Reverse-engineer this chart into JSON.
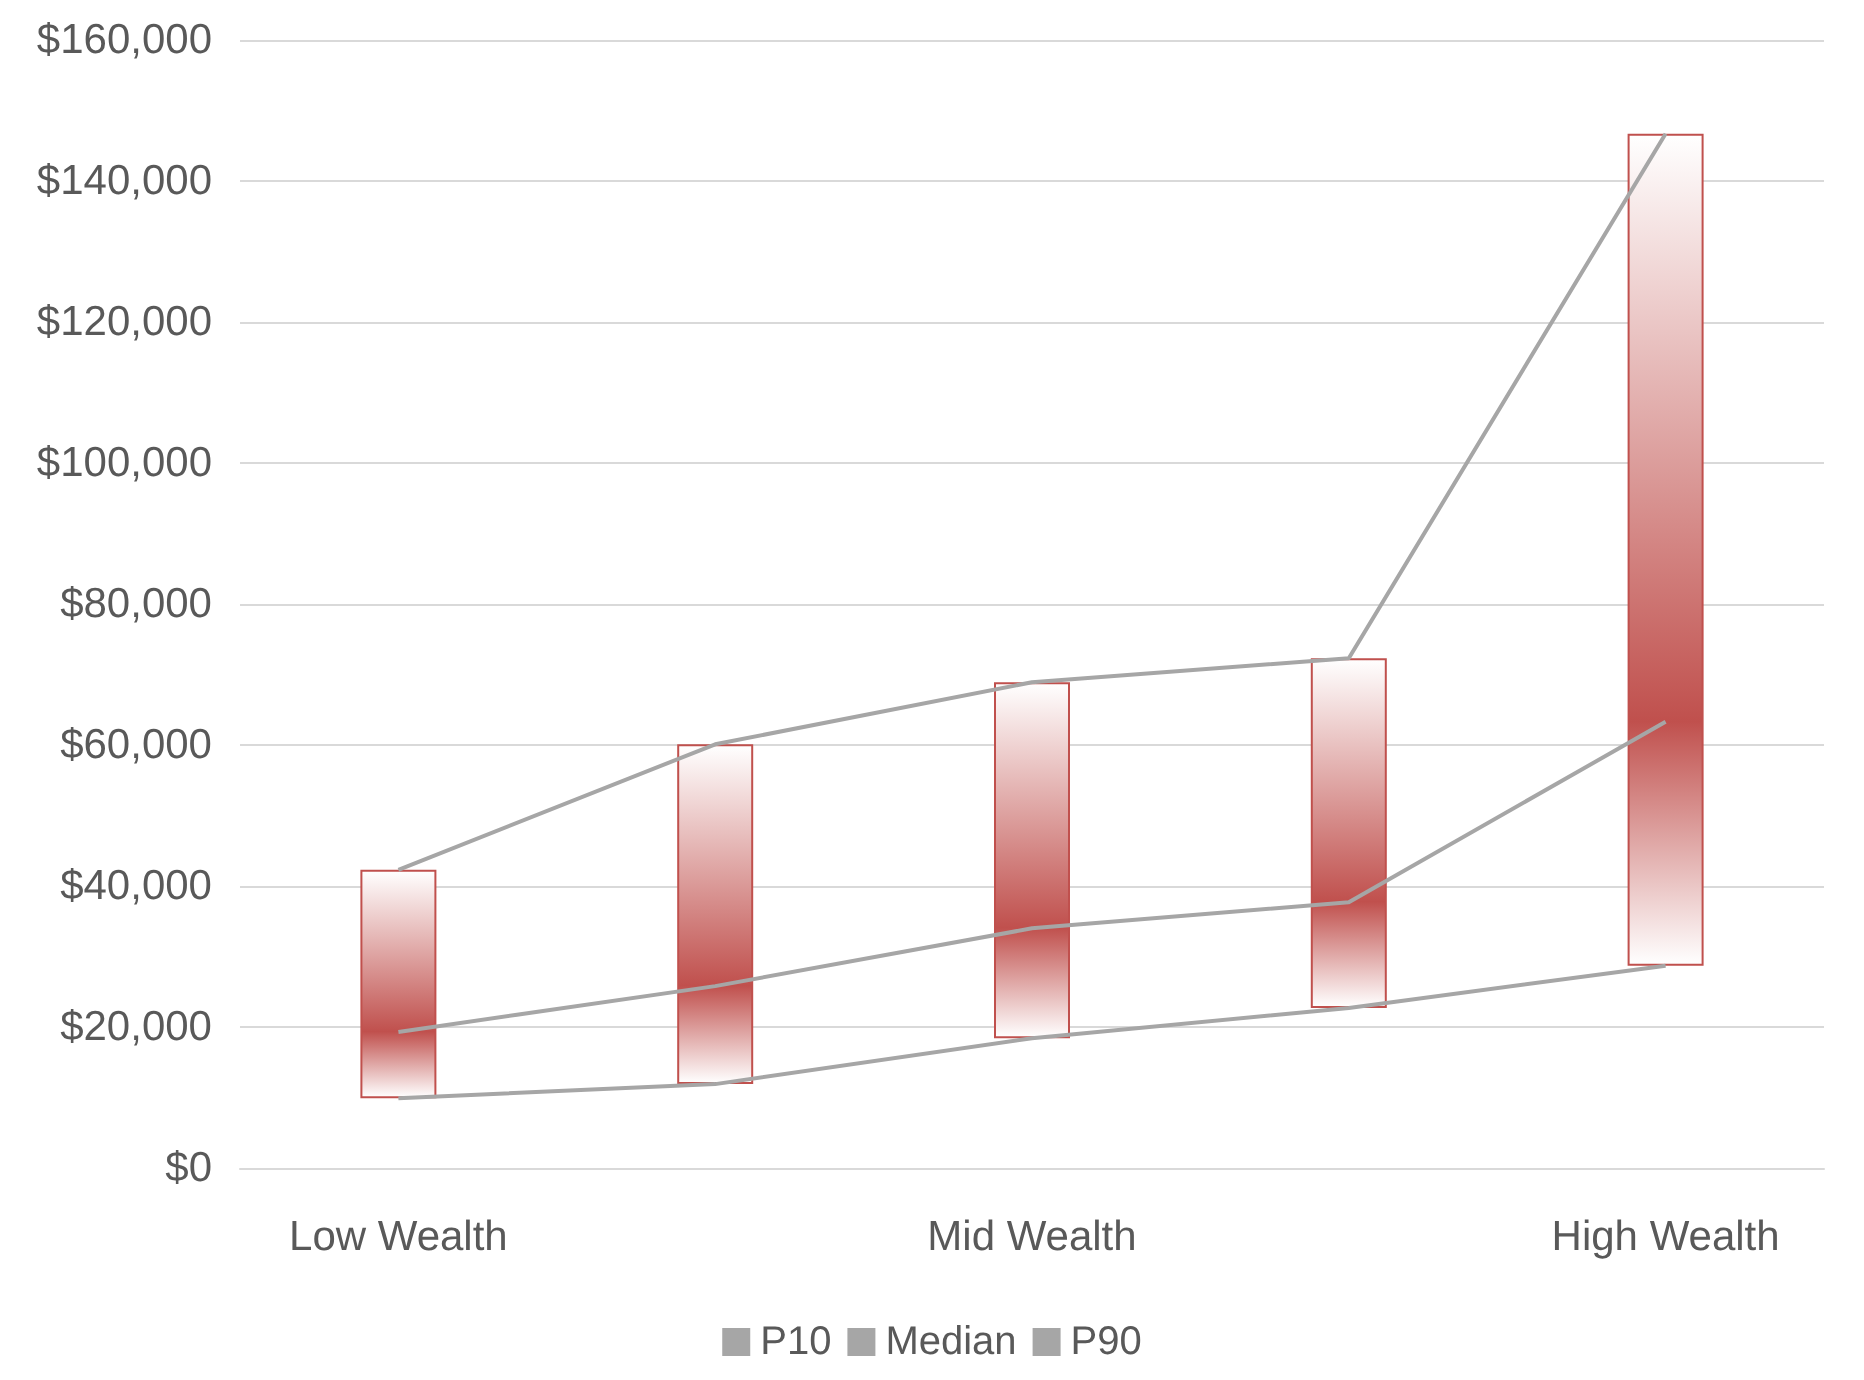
{
  "chart_data": {
    "type": "line",
    "categories": [
      "Low Wealth",
      null,
      "Mid Wealth",
      null,
      "High Wealth"
    ],
    "series": [
      {
        "type": "bar",
        "color": "#c0504d",
        "base": [
          9900,
          11900,
          18400,
          22700,
          28700
        ],
        "values": [
          32400,
          48200,
          50500,
          49600,
          118000
        ]
      },
      {
        "name": "P10",
        "color": "#a6a6a6",
        "values": [
          9900,
          11900,
          18400,
          22700,
          28700
        ]
      },
      {
        "name": "Median",
        "color": "#a6a6a6",
        "values": [
          19300,
          25800,
          34000,
          37700,
          63300
        ]
      },
      {
        "name": "P90",
        "color": "#a6a6a6",
        "values": [
          42300,
          60100,
          68900,
          72300,
          146700
        ]
      }
    ],
    "ylim": [
      0,
      160000
    ],
    "yticks": [
      {
        "value": 0,
        "label": "$0"
      },
      {
        "value": 20000,
        "label": "$20,000"
      },
      {
        "value": 40000,
        "label": "$40,000"
      },
      {
        "value": 60000,
        "label": "$60,000"
      },
      {
        "value": 80000,
        "label": "$80,000"
      },
      {
        "value": 100000,
        "label": "$100,000"
      },
      {
        "value": 120000,
        "label": "$120,000"
      },
      {
        "value": 140000,
        "label": "$140,000"
      },
      {
        "value": 160000,
        "label": "$160,000"
      }
    ],
    "grid": "y",
    "legend": "bottom",
    "marker": "none",
    "line_style": "solid"
  }
}
